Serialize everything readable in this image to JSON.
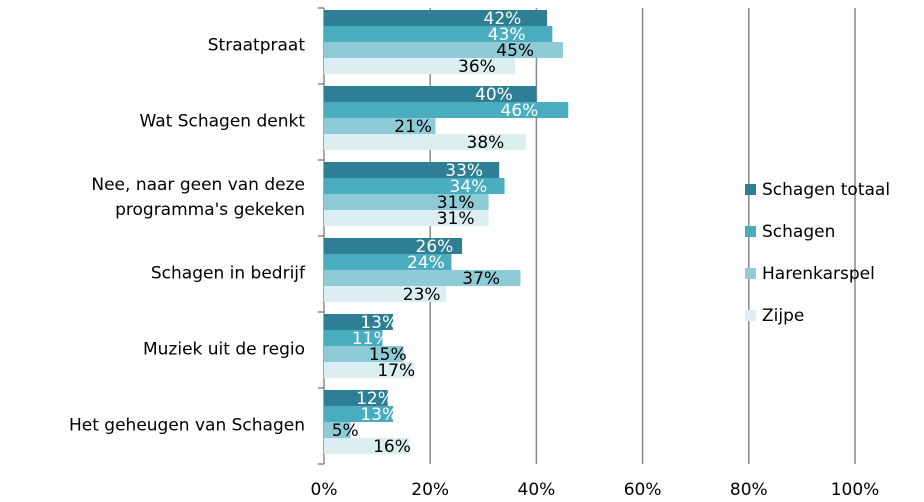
{
  "chart_data": {
    "type": "bar",
    "orientation": "horizontal",
    "categories": [
      "Straatpraat",
      "Wat Schagen denkt",
      "Nee, naar geen van deze programma's gekeken",
      "Schagen in bedrijf",
      "Muziek uit de regio",
      "Het geheugen van Schagen"
    ],
    "series": [
      {
        "name": "Schagen totaal",
        "color": "#2e7f93",
        "label_color": "#ffffff",
        "values": [
          42,
          40,
          33,
          26,
          13,
          12
        ],
        "value_labels": [
          "42%",
          "40%",
          "33%",
          "26%",
          "13%",
          "12%"
        ]
      },
      {
        "name": "Schagen",
        "color": "#4aacbf",
        "label_color": "#ffffff",
        "values": [
          43,
          46,
          34,
          24,
          11,
          13
        ],
        "value_labels": [
          "43%",
          "46%",
          "34%",
          "24%",
          "11%",
          "13%"
        ]
      },
      {
        "name": "Harenkarspel",
        "color": "#8ecbd6",
        "label_color": "#000000",
        "values": [
          45,
          21,
          31,
          37,
          15,
          5
        ],
        "value_labels": [
          "45%",
          "21%",
          "31%",
          "37%",
          "15%",
          "5%"
        ]
      },
      {
        "name": "Zijpe",
        "color": "#dbeff3",
        "label_color": "#000000",
        "values": [
          36,
          38,
          31,
          23,
          17,
          16
        ],
        "value_labels": [
          "36%",
          "38%",
          "31%",
          "23%",
          "17%",
          "16%"
        ]
      }
    ],
    "xlim": [
      0,
      100
    ],
    "xticks": [
      {
        "value": 0,
        "label": "0%"
      },
      {
        "value": 20,
        "label": "20%"
      },
      {
        "value": 40,
        "label": "40%"
      },
      {
        "value": 60,
        "label": "60%"
      },
      {
        "value": 80,
        "label": "80%"
      },
      {
        "value": 100,
        "label": "100%"
      }
    ],
    "grid": true,
    "legend": "right"
  }
}
